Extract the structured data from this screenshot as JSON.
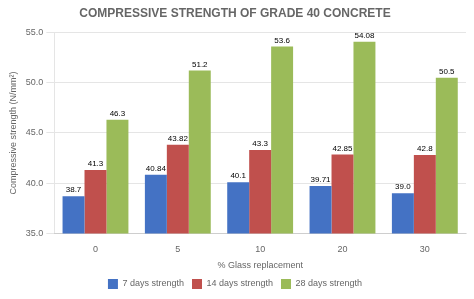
{
  "chart_data": {
    "type": "bar",
    "title": "COMPRESSIVE STRENGTH OF GRADE 40 CONCRETE",
    "xlabel": "% Glass replacement",
    "ylabel": "Compressive strength (N/mm²)",
    "categories": [
      "0",
      "5",
      "10",
      "20",
      "30"
    ],
    "series": [
      {
        "name": "7 days strength",
        "color": "#4472C4",
        "values": [
          38.7,
          40.84,
          40.1,
          39.71,
          39.0
        ],
        "value_labels": [
          "38.7",
          "40.84",
          "40.1",
          "39.71",
          "39.0"
        ]
      },
      {
        "name": "14 days strength",
        "color": "#C0504D",
        "values": [
          41.3,
          43.82,
          43.3,
          42.85,
          42.8
        ],
        "value_labels": [
          "41.3",
          "43.82",
          "43.3",
          "42.85",
          "42.8"
        ]
      },
      {
        "name": "28 days strength",
        "color": "#9BBB59",
        "values": [
          46.3,
          51.2,
          53.6,
          54.08,
          50.5
        ],
        "value_labels": [
          "46.3",
          "51.2",
          "53.6",
          "54.08",
          "50.5"
        ]
      }
    ],
    "ylim": [
      35.0,
      55.0
    ],
    "yticks": [
      {
        "value": 35,
        "label": "35.0"
      },
      {
        "value": 40,
        "label": "40.0"
      },
      {
        "value": 45,
        "label": "45.0"
      },
      {
        "value": 50,
        "label": "50.0"
      },
      {
        "value": 55,
        "label": "55.0"
      }
    ],
    "grid": true,
    "legend": "bottom",
    "data_labels": true
  }
}
